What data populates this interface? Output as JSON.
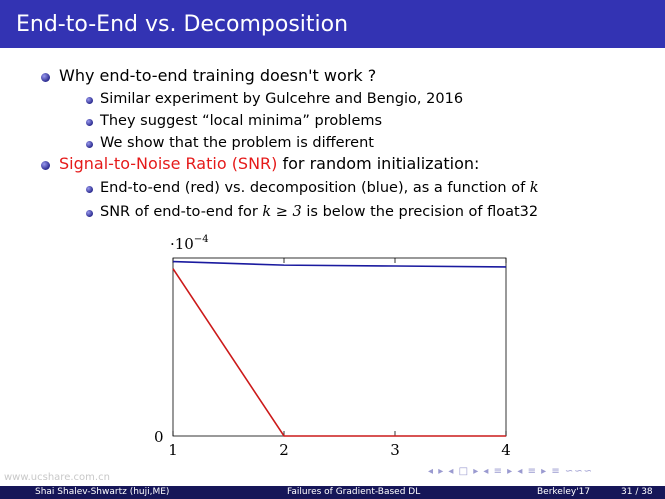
{
  "title": "End-to-End vs. Decomposition",
  "bullets": [
    {
      "text": "Why end-to-end training doesn't work ?",
      "sub": [
        "Similar experiment by Gulcehre and Bengio, 2016",
        "They suggest “local minima” problems",
        "We show that the problem is different"
      ]
    },
    {
      "text_red": "Signal-to-Noise Ratio (SNR)",
      "text_rest": " for random initialization:",
      "sub2_a": "End-to-end (red) vs. decomposition (blue), as a function of ",
      "sub2_a_k": "k",
      "sub2_b_pre": "SNR of end-to-end for ",
      "sub2_b_math": "k ≥ 3",
      "sub2_b_post": " is below the precision of float32"
    }
  ],
  "chart_data": {
    "type": "line",
    "x": [
      1,
      2,
      3,
      4
    ],
    "xticks": [
      "1",
      "2",
      "3",
      "4"
    ],
    "y_multiplier_base": "·10",
    "y_multiplier_exp": "−4",
    "ytick_zero": "0",
    "xlim": [
      1,
      4
    ],
    "ylim": [
      0,
      1
    ],
    "series": [
      {
        "color": "#1a1a9f",
        "values": [
          0.98,
          0.96,
          0.955,
          0.95
        ]
      },
      {
        "color": "#cc1a1a",
        "values": [
          0.94,
          0.0,
          0.0,
          0.0
        ]
      }
    ]
  },
  "footer": {
    "author": "Shai Shalev-Shwartz  (huji,ME)",
    "talk": "Failures of Gradient-Based DL",
    "venue": "Berkeley'17",
    "page": "31 / 38"
  },
  "nav_symbols": "◂ ▸ ◂ □ ▸ ◂ ≡ ▸ ◂ ≡ ▸ ≡ ∽∽∽",
  "watermark": "www.ucshare.com.cn"
}
